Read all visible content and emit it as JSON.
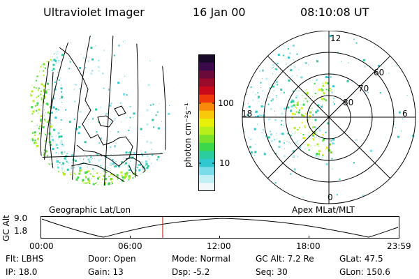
{
  "header": {
    "instrument": "Ultraviolet Imager",
    "date": "16 Jan 00",
    "time": "08:10:08 UT"
  },
  "geo_panel": {
    "label": "Geographic Lat/Lon"
  },
  "polar_panel": {
    "label": "Apex MLat/MLT",
    "mlt_labels": {
      "top": "12",
      "left": "18",
      "right": "6",
      "bottom": "0"
    },
    "lat_labels": [
      "60",
      "70",
      "80"
    ]
  },
  "colorbar": {
    "unit_label": "photon cm⁻²s⁻¹",
    "tick_labels": [
      "100",
      "10"
    ],
    "colors": [
      "#1a0a2a",
      "#3a0a4a",
      "#6a0a3a",
      "#9a0a2a",
      "#c80a1a",
      "#ee3a0a",
      "#f88a0a",
      "#f8c80a",
      "#e8f00a",
      "#b8ee1a",
      "#7ae22a",
      "#3ad84a",
      "#2acca0",
      "#30c8d0",
      "#7adce8",
      "#c0eef4",
      "#f0f8fa"
    ]
  },
  "altitude_strip": {
    "axis_label": "GC Alt",
    "y_ticks": [
      "9.0",
      "1.8"
    ],
    "x_ticks": [
      "00:00",
      "06:00",
      "12:00",
      "18:00",
      "23:59"
    ],
    "marker_color": "#cc0000"
  },
  "info": {
    "row1": {
      "flt": "Flt: LBHS",
      "door": "Door: Open",
      "mode": "Mode: Normal",
      "gcalt": "GC Alt: 7.2 Re",
      "glat": "GLat:  47.5"
    },
    "row2": {
      "ip": "IP: 18.0",
      "gain": "Gain: 13",
      "dsp": "Dsp:   -5.2",
      "seq": "Seq: 30",
      "glon": "GLon: 150.6"
    }
  }
}
